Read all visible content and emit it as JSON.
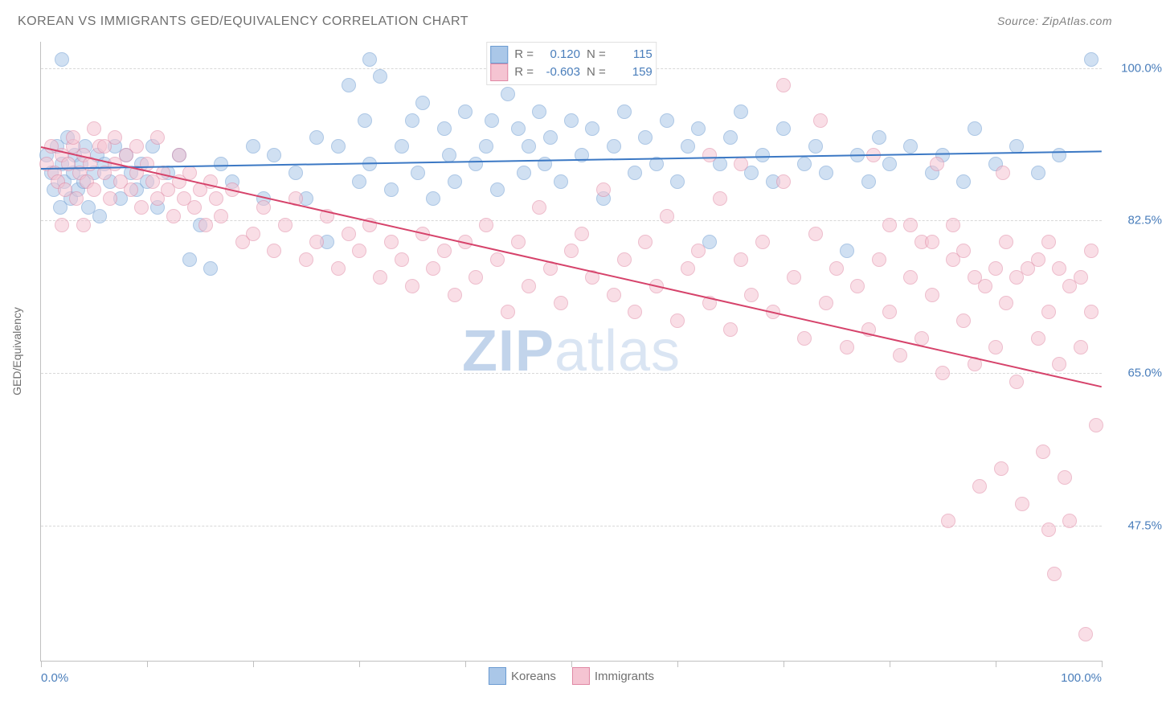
{
  "title": "KOREAN VS IMMIGRANTS GED/EQUIVALENCY CORRELATION CHART",
  "source": "Source: ZipAtlas.com",
  "watermark_bold": "ZIP",
  "watermark_light": "atlas",
  "ylabel": "GED/Equivalency",
  "chart": {
    "type": "scatter",
    "xlim": [
      0,
      100
    ],
    "ylim": [
      32,
      103
    ],
    "xtick_positions": [
      0,
      10,
      20,
      30,
      40,
      50,
      60,
      70,
      80,
      90,
      100
    ],
    "xtick_labels_shown": {
      "0": "0.0%",
      "100": "100.0%"
    },
    "ytick_positions": [
      47.5,
      65.0,
      82.5,
      100.0
    ],
    "ytick_labels": [
      "47.5%",
      "65.0%",
      "82.5%",
      "100.0%"
    ],
    "background_color": "#ffffff",
    "grid_color": "#d8d8d8",
    "axis_color": "#c0c0c0",
    "marker_radius": 9,
    "marker_opacity": 0.55,
    "label_fontsize": 15,
    "label_color": "#4a7ebb"
  },
  "series": [
    {
      "name": "Koreans",
      "color_fill": "#aac7e8",
      "color_stroke": "#6b9bd1",
      "line_color": "#3b78c4",
      "R": "0.120",
      "N": "115",
      "trend": {
        "x1": 0,
        "y1": 88.5,
        "x2": 100,
        "y2": 90.5
      },
      "points": [
        [
          0.5,
          90
        ],
        [
          1,
          88
        ],
        [
          1.2,
          86
        ],
        [
          1.5,
          91
        ],
        [
          1.8,
          84
        ],
        [
          2,
          89
        ],
        [
          2.2,
          87
        ],
        [
          2.5,
          92
        ],
        [
          2.8,
          85
        ],
        [
          3,
          88
        ],
        [
          3.2,
          90
        ],
        [
          3.5,
          86
        ],
        [
          3.8,
          89
        ],
        [
          4,
          87
        ],
        [
          4.2,
          91
        ],
        [
          4.5,
          84
        ],
        [
          5,
          88
        ],
        [
          5.3,
          90
        ],
        [
          5.5,
          83
        ],
        [
          6,
          89
        ],
        [
          6.5,
          87
        ],
        [
          7,
          91
        ],
        [
          7.5,
          85
        ],
        [
          8,
          90
        ],
        [
          8.5,
          88
        ],
        [
          9,
          86
        ],
        [
          9.5,
          89
        ],
        [
          10,
          87
        ],
        [
          10.5,
          91
        ],
        [
          11,
          84
        ],
        [
          12,
          88
        ],
        [
          13,
          90
        ],
        [
          14,
          78
        ],
        [
          15,
          82
        ],
        [
          16,
          77
        ],
        [
          17,
          89
        ],
        [
          18,
          87
        ],
        [
          20,
          91
        ],
        [
          21,
          85
        ],
        [
          22,
          90
        ],
        [
          24,
          88
        ],
        [
          25,
          85
        ],
        [
          26,
          92
        ],
        [
          27,
          80
        ],
        [
          28,
          91
        ],
        [
          29,
          98
        ],
        [
          30,
          87
        ],
        [
          30.5,
          94
        ],
        [
          31,
          89
        ],
        [
          32,
          99
        ],
        [
          33,
          86
        ],
        [
          34,
          91
        ],
        [
          35,
          94
        ],
        [
          35.5,
          88
        ],
        [
          36,
          96
        ],
        [
          37,
          85
        ],
        [
          38,
          93
        ],
        [
          38.5,
          90
        ],
        [
          39,
          87
        ],
        [
          40,
          95
        ],
        [
          41,
          89
        ],
        [
          42,
          91
        ],
        [
          42.5,
          94
        ],
        [
          43,
          86
        ],
        [
          44,
          97
        ],
        [
          45,
          93
        ],
        [
          45.5,
          88
        ],
        [
          46,
          91
        ],
        [
          47,
          95
        ],
        [
          47.5,
          89
        ],
        [
          48,
          92
        ],
        [
          49,
          87
        ],
        [
          50,
          94
        ],
        [
          51,
          90
        ],
        [
          52,
          93
        ],
        [
          53,
          85
        ],
        [
          54,
          91
        ],
        [
          55,
          95
        ],
        [
          56,
          88
        ],
        [
          57,
          92
        ],
        [
          58,
          89
        ],
        [
          59,
          94
        ],
        [
          60,
          87
        ],
        [
          61,
          91
        ],
        [
          62,
          93
        ],
        [
          63,
          80
        ],
        [
          64,
          89
        ],
        [
          65,
          92
        ],
        [
          66,
          95
        ],
        [
          67,
          88
        ],
        [
          68,
          90
        ],
        [
          69,
          87
        ],
        [
          70,
          93
        ],
        [
          72,
          89
        ],
        [
          73,
          91
        ],
        [
          74,
          88
        ],
        [
          76,
          79
        ],
        [
          77,
          90
        ],
        [
          78,
          87
        ],
        [
          79,
          92
        ],
        [
          80,
          89
        ],
        [
          82,
          91
        ],
        [
          84,
          88
        ],
        [
          85,
          90
        ],
        [
          87,
          87
        ],
        [
          88,
          93
        ],
        [
          90,
          89
        ],
        [
          92,
          91
        ],
        [
          94,
          88
        ],
        [
          96,
          90
        ],
        [
          99,
          101
        ],
        [
          31,
          101
        ],
        [
          2,
          101
        ]
      ]
    },
    {
      "name": "Immigrants",
      "color_fill": "#f5c4d2",
      "color_stroke": "#e088a4",
      "line_color": "#d6436b",
      "R": "-0.603",
      "N": "159",
      "trend": {
        "x1": 0,
        "y1": 91.0,
        "x2": 100,
        "y2": 63.5
      },
      "points": [
        [
          0.5,
          89
        ],
        [
          1,
          91
        ],
        [
          1.3,
          88
        ],
        [
          1.6,
          87
        ],
        [
          2,
          90
        ],
        [
          2.3,
          86
        ],
        [
          2.6,
          89
        ],
        [
          3,
          91
        ],
        [
          3.3,
          85
        ],
        [
          3.6,
          88
        ],
        [
          4,
          90
        ],
        [
          4.3,
          87
        ],
        [
          4.6,
          89
        ],
        [
          5,
          86
        ],
        [
          5.5,
          91
        ],
        [
          6,
          88
        ],
        [
          6.5,
          85
        ],
        [
          7,
          89
        ],
        [
          7.5,
          87
        ],
        [
          8,
          90
        ],
        [
          8.5,
          86
        ],
        [
          9,
          88
        ],
        [
          9.5,
          84
        ],
        [
          10,
          89
        ],
        [
          10.5,
          87
        ],
        [
          11,
          85
        ],
        [
          11.5,
          88
        ],
        [
          12,
          86
        ],
        [
          12.5,
          83
        ],
        [
          13,
          87
        ],
        [
          13.5,
          85
        ],
        [
          14,
          88
        ],
        [
          14.5,
          84
        ],
        [
          15,
          86
        ],
        [
          15.5,
          82
        ],
        [
          16,
          87
        ],
        [
          16.5,
          85
        ],
        [
          17,
          83
        ],
        [
          18,
          86
        ],
        [
          19,
          80
        ],
        [
          20,
          81
        ],
        [
          21,
          84
        ],
        [
          22,
          79
        ],
        [
          23,
          82
        ],
        [
          24,
          85
        ],
        [
          25,
          78
        ],
        [
          26,
          80
        ],
        [
          27,
          83
        ],
        [
          28,
          77
        ],
        [
          29,
          81
        ],
        [
          30,
          79
        ],
        [
          31,
          82
        ],
        [
          32,
          76
        ],
        [
          33,
          80
        ],
        [
          34,
          78
        ],
        [
          35,
          75
        ],
        [
          36,
          81
        ],
        [
          37,
          77
        ],
        [
          38,
          79
        ],
        [
          39,
          74
        ],
        [
          40,
          80
        ],
        [
          41,
          76
        ],
        [
          42,
          82
        ],
        [
          43,
          78
        ],
        [
          44,
          72
        ],
        [
          45,
          80
        ],
        [
          46,
          75
        ],
        [
          47,
          84
        ],
        [
          48,
          77
        ],
        [
          49,
          73
        ],
        [
          50,
          79
        ],
        [
          51,
          81
        ],
        [
          52,
          76
        ],
        [
          53,
          86
        ],
        [
          54,
          74
        ],
        [
          55,
          78
        ],
        [
          56,
          72
        ],
        [
          57,
          80
        ],
        [
          58,
          75
        ],
        [
          59,
          83
        ],
        [
          60,
          71
        ],
        [
          61,
          77
        ],
        [
          62,
          79
        ],
        [
          63,
          73
        ],
        [
          64,
          85
        ],
        [
          65,
          70
        ],
        [
          66,
          78
        ],
        [
          67,
          74
        ],
        [
          68,
          80
        ],
        [
          69,
          72
        ],
        [
          70,
          98
        ],
        [
          71,
          76
        ],
        [
          72,
          69
        ],
        [
          73,
          81
        ],
        [
          73.5,
          94
        ],
        [
          74,
          73
        ],
        [
          75,
          77
        ],
        [
          76,
          68
        ],
        [
          77,
          75
        ],
        [
          78,
          70
        ],
        [
          78.5,
          90
        ],
        [
          79,
          78
        ],
        [
          80,
          72
        ],
        [
          81,
          67
        ],
        [
          82,
          76
        ],
        [
          83,
          69
        ],
        [
          84,
          74
        ],
        [
          84.5,
          89
        ],
        [
          85,
          65
        ],
        [
          85.5,
          48
        ],
        [
          86,
          78
        ],
        [
          87,
          71
        ],
        [
          88,
          66
        ],
        [
          88.5,
          52
        ],
        [
          89,
          75
        ],
        [
          90,
          68
        ],
        [
          90.5,
          54
        ],
        [
          90.7,
          88
        ],
        [
          91,
          73
        ],
        [
          92,
          64
        ],
        [
          92.5,
          50
        ],
        [
          93,
          77
        ],
        [
          94,
          69
        ],
        [
          94.5,
          56
        ],
        [
          95,
          72
        ],
        [
          95.5,
          42
        ],
        [
          96,
          66
        ],
        [
          96.5,
          53
        ],
        [
          97,
          75
        ],
        [
          98,
          68
        ],
        [
          98.5,
          35
        ],
        [
          99,
          72
        ],
        [
          99.5,
          59
        ],
        [
          3,
          92
        ],
        [
          5,
          93
        ],
        [
          7,
          92
        ],
        [
          9,
          91
        ],
        [
          11,
          92
        ],
        [
          13,
          90
        ],
        [
          2,
          82
        ],
        [
          4,
          82
        ],
        [
          6,
          91
        ],
        [
          99,
          79
        ],
        [
          95,
          80
        ],
        [
          91,
          80
        ],
        [
          87,
          79
        ],
        [
          83,
          80
        ],
        [
          63,
          90
        ],
        [
          66,
          89
        ],
        [
          70,
          87
        ],
        [
          88,
          76
        ],
        [
          90,
          77
        ],
        [
          92,
          76
        ],
        [
          94,
          78
        ],
        [
          96,
          77
        ],
        [
          98,
          76
        ],
        [
          80,
          82
        ],
        [
          82,
          82
        ],
        [
          84,
          80
        ],
        [
          86,
          82
        ],
        [
          95,
          47
        ],
        [
          97,
          48
        ]
      ]
    }
  ],
  "legend_bottom": [
    {
      "label": "Koreans",
      "fill": "#aac7e8",
      "stroke": "#6b9bd1"
    },
    {
      "label": "Immigrants",
      "fill": "#f5c4d2",
      "stroke": "#e088a4"
    }
  ]
}
